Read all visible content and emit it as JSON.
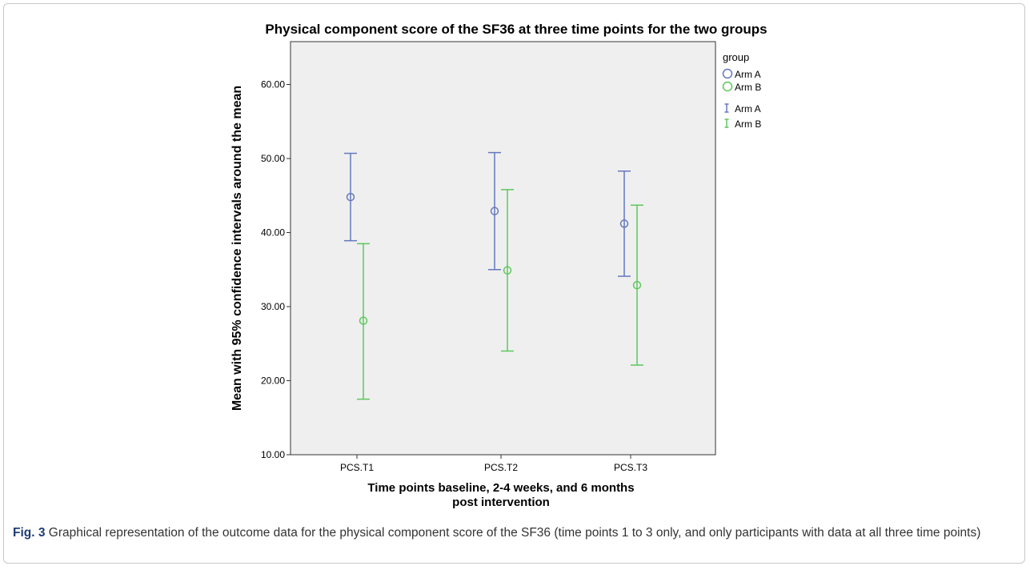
{
  "chart_data": {
    "type": "errorbar",
    "title": "Physical component score of the SF36 at three time points for the two groups",
    "xlabel_line1": "Time points baseline, 2-4 weeks, and 6 months",
    "xlabel_line2": "post intervention",
    "ylabel": "Mean with 95% confidence intervals around the mean",
    "categories": [
      "PCS.T1",
      "PCS.T2",
      "PCS.T3"
    ],
    "ylim": [
      10,
      65
    ],
    "yticks": [
      10,
      20,
      30,
      40,
      50,
      60
    ],
    "ytick_labels": [
      "10.00",
      "20.00",
      "30.00",
      "40.00",
      "50.00",
      "60.00"
    ],
    "grid": false,
    "legend_position": "right",
    "legend": {
      "title": "group",
      "marker_entries": [
        "Arm A",
        "Arm B"
      ],
      "bar_entries": [
        "Arm A",
        "Arm B"
      ]
    },
    "series": [
      {
        "name": "Arm A",
        "color": "#6478c0",
        "mean": [
          44.8,
          42.9,
          41.2
        ],
        "lower": [
          38.9,
          35.0,
          34.1
        ],
        "upper": [
          50.7,
          50.8,
          48.3
        ]
      },
      {
        "name": "Arm B",
        "color": "#5cc85c",
        "mean": [
          28.1,
          34.9,
          32.9
        ],
        "lower": [
          17.5,
          24.0,
          22.1
        ],
        "upper": [
          38.5,
          45.8,
          43.7
        ]
      }
    ]
  },
  "caption": {
    "label": "Fig. 3",
    "text": " Graphical representation of the outcome data for the physical component score of the SF36 (time points 1 to 3 only, and only participants with data at all three time points)"
  }
}
